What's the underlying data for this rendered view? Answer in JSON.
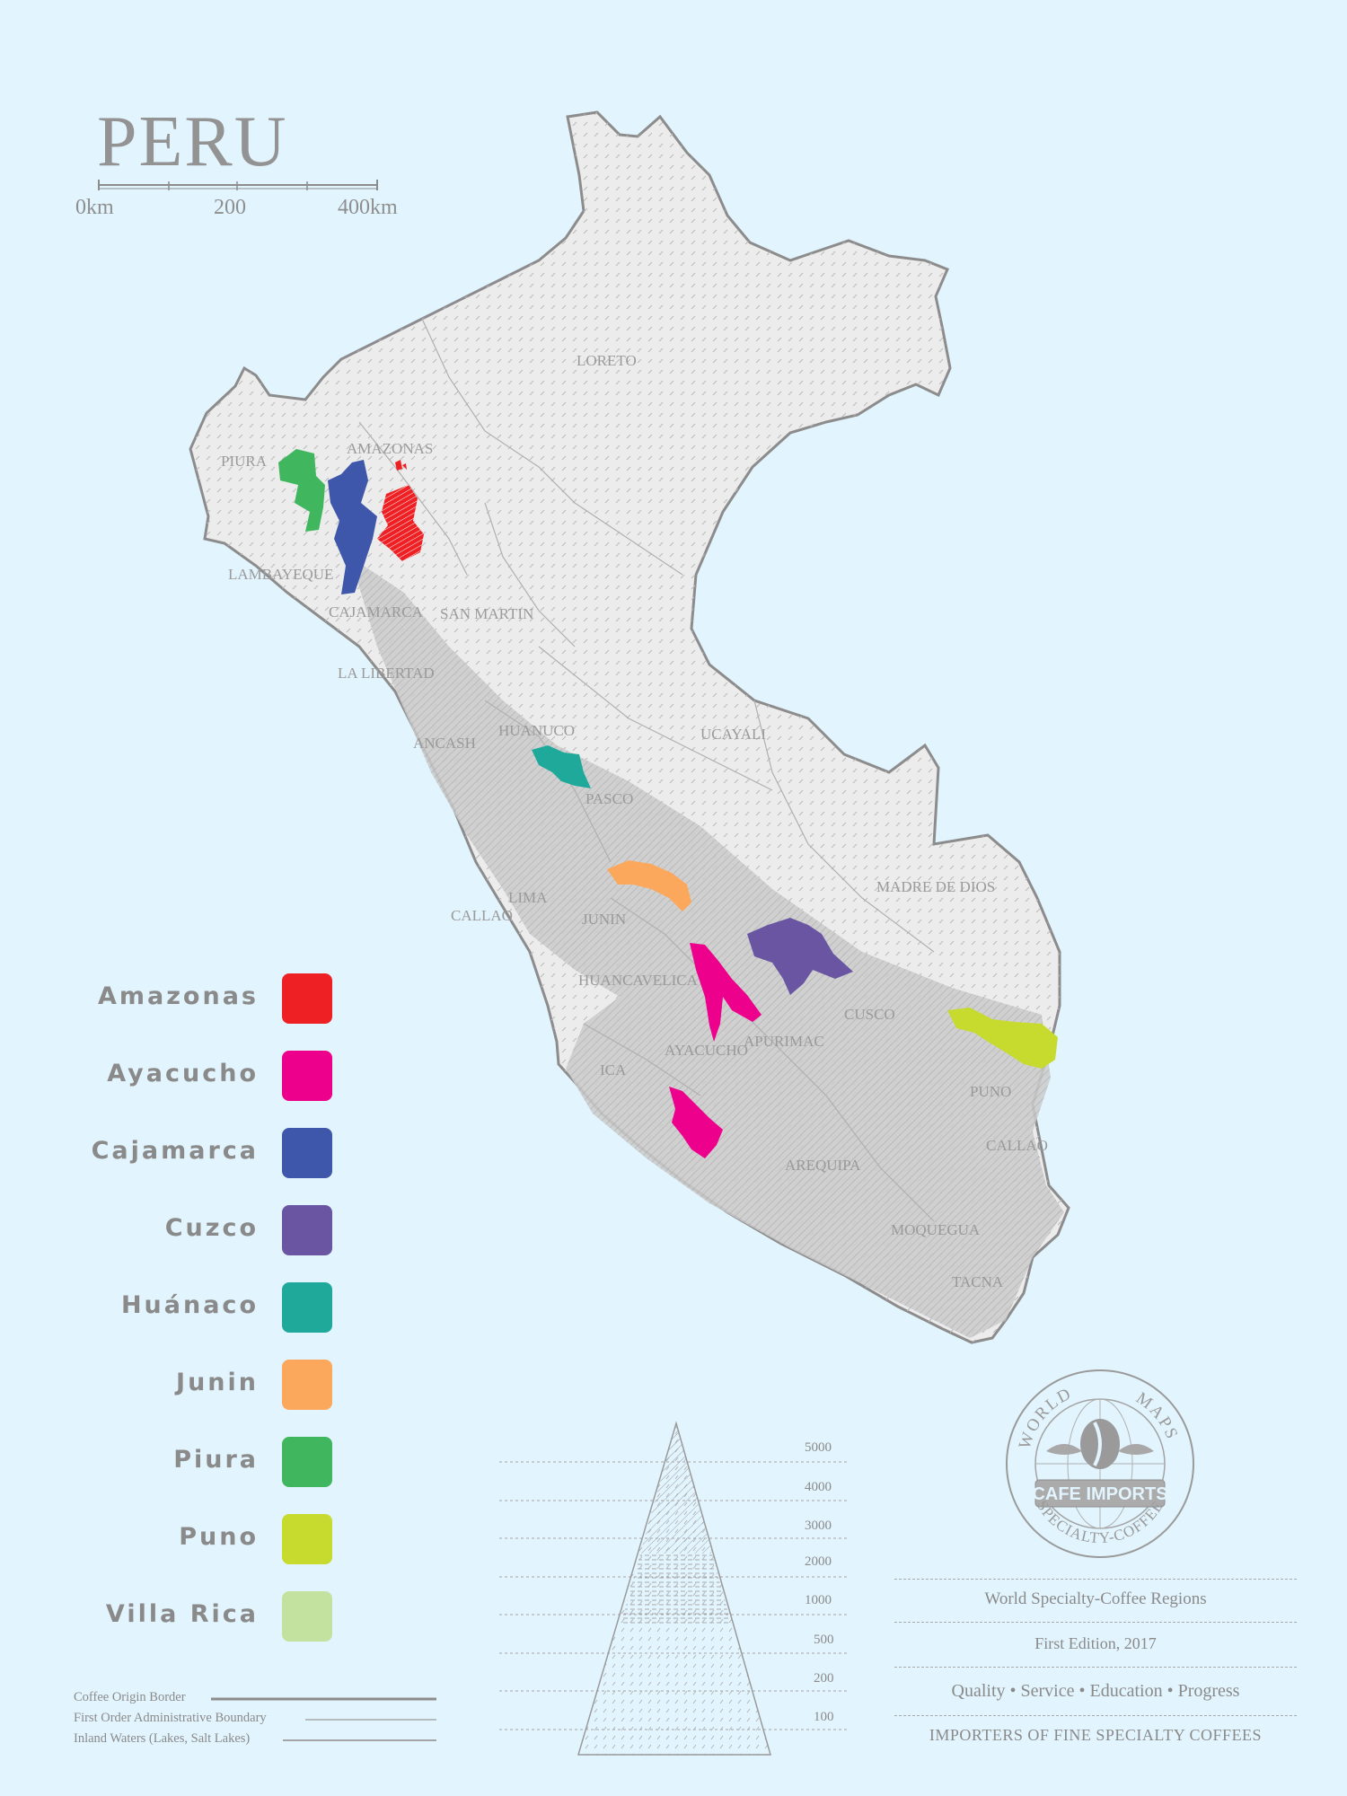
{
  "map": {
    "title": "PERU",
    "scale_bar": {
      "labels": [
        "0km",
        "200",
        "400km"
      ]
    },
    "regions": [
      "LORETO",
      "AMAZONAS",
      "PIURA",
      "LAMBAYEQUE",
      "CAJAMARCA",
      "SAN MARTIN",
      "LA LIBERTAD",
      "HUANUCO",
      "UCAYALI",
      "ANCASH",
      "PASCO",
      "LIMA",
      "CALLAO",
      "JUNIN",
      "MADRE DE DIOS",
      "HUANCAVELICA",
      "CUSCO",
      "APURIMAC",
      "AYACUCHO",
      "ICA",
      "PUNO",
      "CALLAO",
      "AREQUIPA",
      "MOQUEGUA",
      "TACNA"
    ]
  },
  "legend": [
    {
      "name": "Amazonas",
      "color": "#ee2024"
    },
    {
      "name": "Ayacucho",
      "color": "#ec008c"
    },
    {
      "name": "Cajamarca",
      "color": "#3f57ab"
    },
    {
      "name": "Cuzco",
      "color": "#6a55a3"
    },
    {
      "name": "Huánaco",
      "color": "#1fa99a"
    },
    {
      "name": "Junin",
      "color": "#fca85c"
    },
    {
      "name": "Piura",
      "color": "#40b65e"
    },
    {
      "name": "Puno",
      "color": "#c7da2e"
    },
    {
      "name": "Villa Rica",
      "color": "#c3e2a0"
    }
  ],
  "map_key": [
    "Coffee Origin Border",
    "First Order Administrative Boundary",
    "Inland Waters (Lakes, Salt Lakes)"
  ],
  "elevation": [
    "5000",
    "4000",
    "3000",
    "2000",
    "1000",
    "500",
    "200",
    "100"
  ],
  "logo": {
    "top": "WORLD",
    "top_right": "MAPS",
    "banner": "CAFE IMPORTS",
    "bottom": "SPECIALTY-COFFEE"
  },
  "info": {
    "line1": "World Specialty-Coffee Regions",
    "line2": "First Edition, 2017",
    "line3": "Quality • Service • Education • Progress",
    "line4": "IMPORTERS OF FINE SPECIALTY COFFEES"
  },
  "colors": {
    "background": "#e2f4fd",
    "land": "#ebebeb",
    "outline": "#8c8c8c",
    "highland": "#c8c8c8"
  }
}
